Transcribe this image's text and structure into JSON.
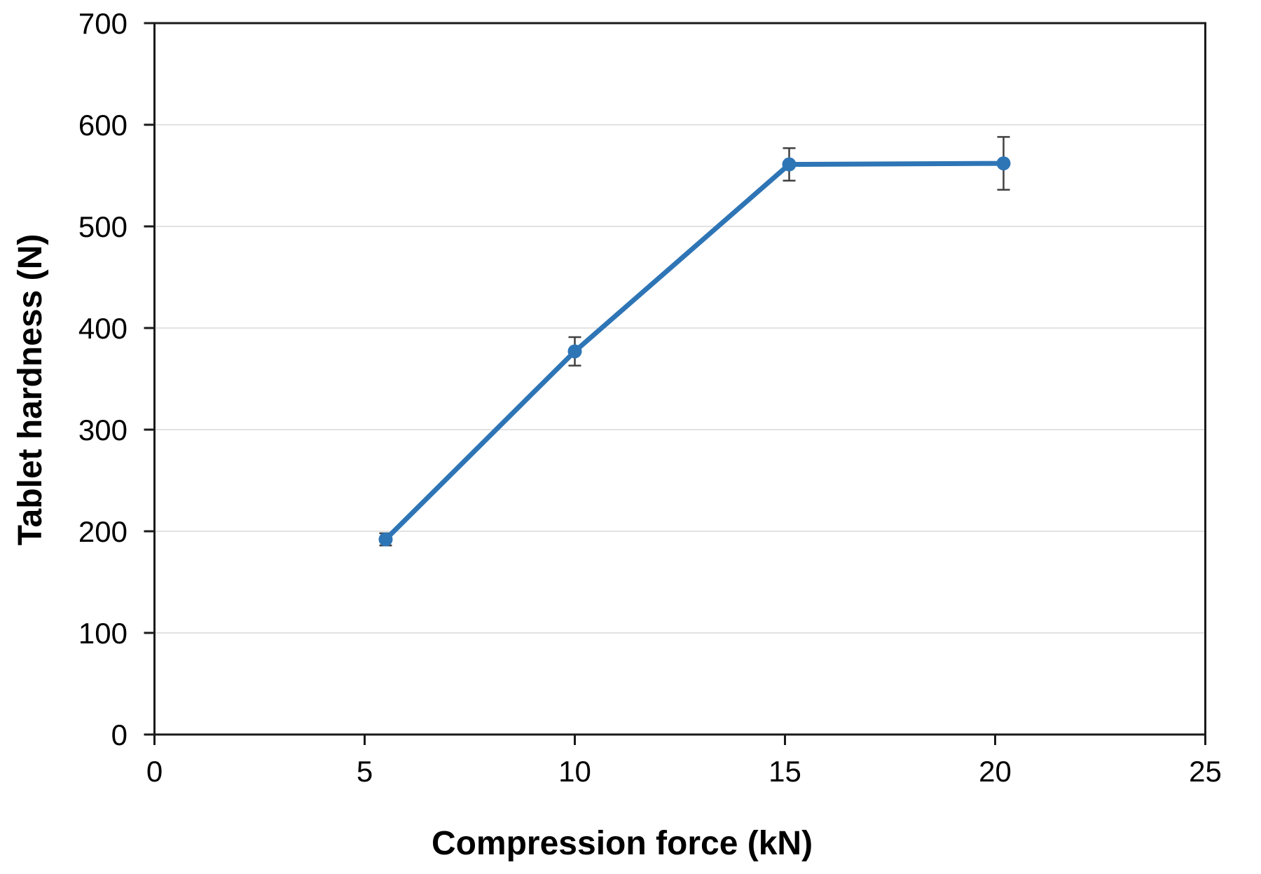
{
  "chart_data": {
    "type": "line",
    "title": "",
    "xlabel": "Compression force (kN)",
    "ylabel": "Tablet hardness (N)",
    "xlim": [
      0,
      25
    ],
    "ylim": [
      0,
      700
    ],
    "xticks": [
      0,
      5,
      10,
      15,
      20,
      25
    ],
    "yticks": [
      0,
      100,
      200,
      300,
      400,
      500,
      600,
      700
    ],
    "grid": "horizontal",
    "legend": false,
    "series": [
      {
        "name": "Tablet hardness",
        "marker": "circle",
        "x": [
          5.5,
          10,
          15.1,
          20.2
        ],
        "y": [
          192,
          377,
          561,
          562
        ],
        "yerr": [
          6,
          14,
          16,
          26
        ]
      }
    ],
    "colors": {
      "series": "#2E75B6",
      "errorbar": "#404040",
      "gridline": "#D9D9D9",
      "axis": "#1A1A1A",
      "text": "#000000"
    }
  }
}
